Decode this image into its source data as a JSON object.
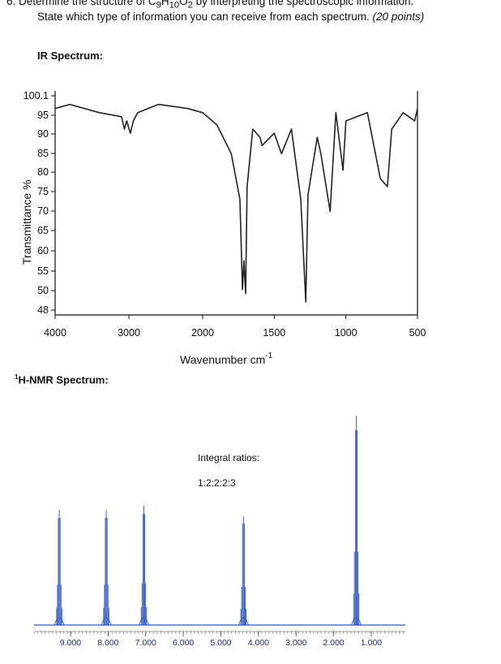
{
  "question": {
    "number": "6.",
    "line1_pre": "Determine the structure of C",
    "sub9": "9",
    "h": "H",
    "sub10": "10",
    "o": "O",
    "sub2": "2",
    "line1_post": " by interpreting the spectroscopic information.",
    "line2": "State which type of information you can receive from each spectrum.",
    "points": "(20 points)"
  },
  "ir": {
    "section_label": "IR Spectrum:",
    "chart_data": {
      "type": "line",
      "xlabel": "Wavenumber cm",
      "xlabel_sup": "-1",
      "ylabel": "Transmittance %",
      "y_ticks": [
        "100.1",
        "95",
        "90",
        "85",
        "80",
        "75",
        "70",
        "65",
        "60",
        "55",
        "50",
        "48"
      ],
      "x_ticks": [
        "4000",
        "3000",
        "2000",
        "1500",
        "1000",
        "500"
      ],
      "x_reversed": true,
      "y_range": [
        48,
        100.1
      ],
      "description_points": [
        [
          4000,
          97
        ],
        [
          3800,
          98
        ],
        [
          3400,
          96
        ],
        [
          3100,
          95
        ],
        [
          3060,
          92
        ],
        [
          3030,
          94
        ],
        [
          2980,
          91
        ],
        [
          2940,
          94
        ],
        [
          2880,
          96
        ],
        [
          2600,
          98
        ],
        [
          2200,
          97
        ],
        [
          2000,
          96
        ],
        [
          1900,
          93
        ],
        [
          1800,
          86
        ],
        [
          1740,
          75
        ],
        [
          1722,
          53
        ],
        [
          1712,
          60
        ],
        [
          1700,
          52
        ],
        [
          1690,
          78
        ],
        [
          1650,
          92
        ],
        [
          1600,
          90
        ],
        [
          1585,
          88
        ],
        [
          1500,
          91
        ],
        [
          1450,
          86
        ],
        [
          1380,
          92
        ],
        [
          1315,
          75
        ],
        [
          1280,
          50
        ],
        [
          1265,
          76
        ],
        [
          1200,
          90
        ],
        [
          1175,
          86
        ],
        [
          1110,
          72
        ],
        [
          1070,
          96
        ],
        [
          1020,
          82
        ],
        [
          1000,
          94
        ],
        [
          850,
          96
        ],
        [
          760,
          80
        ],
        [
          710,
          78
        ],
        [
          680,
          92
        ],
        [
          600,
          96
        ],
        [
          520,
          94
        ],
        [
          500,
          97
        ]
      ]
    }
  },
  "nmr": {
    "section_label_sup": "1",
    "section_label": "H-NMR Spectrum:",
    "integral_title": "Integral ratios:",
    "integral_values": "1:2:2:2:3",
    "chart_data": {
      "type": "line",
      "x_ticks": [
        "9.000",
        "8.000",
        "7.000",
        "6.000",
        "5.000",
        "4.000",
        "3.000",
        "2.000",
        "1.000"
      ],
      "x_reversed": true,
      "peaks": [
        {
          "ppm": 9.3,
          "height": 0.55
        },
        {
          "ppm": 8.05,
          "height": 0.55
        },
        {
          "ppm": 7.05,
          "height": 0.57
        },
        {
          "ppm": 4.4,
          "height": 0.52
        },
        {
          "ppm": 1.4,
          "height": 1.0
        }
      ]
    }
  }
}
